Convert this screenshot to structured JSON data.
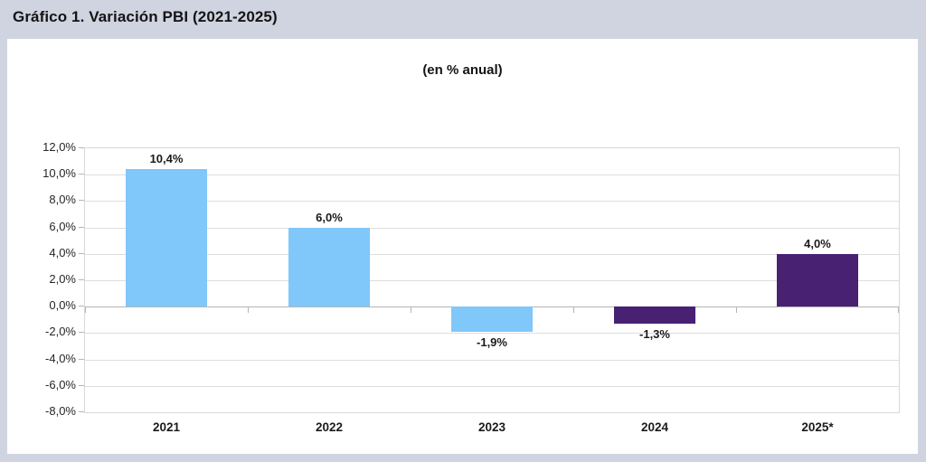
{
  "heading": "Gráfico 1. Variación PBI (2021-2025)",
  "subtitle": "(en % anual)",
  "colors": {
    "page_background": "#d0d4e0",
    "card_background": "#ffffff",
    "bar_blue": "#80c7fa",
    "bar_purple": "#482173",
    "gridline": "#dedede",
    "axis_line": "#b5b5b5",
    "text": "#1a1a1a"
  },
  "chart_data": {
    "type": "bar",
    "title": "Gráfico 1. Variación PBI (2021-2025)",
    "subtitle": "(en % anual)",
    "categories": [
      "2021",
      "2022",
      "2023",
      "2024",
      "2025*"
    ],
    "values": [
      10.4,
      6.0,
      -1.9,
      -1.3,
      4.0
    ],
    "bar_labels": [
      "10,4%",
      "6,0%",
      "-1,9%",
      "-1,3%",
      "4,0%"
    ],
    "bar_colors": [
      "#80c7fa",
      "#80c7fa",
      "#80c7fa",
      "#482173",
      "#482173"
    ],
    "xlabel": "",
    "ylabel": "",
    "ylim": [
      -8,
      12
    ],
    "grid": true,
    "legend": false,
    "yticks": [
      {
        "value": 12,
        "label": "12,0%"
      },
      {
        "value": 10,
        "label": "10,0%"
      },
      {
        "value": 8,
        "label": "8,0%"
      },
      {
        "value": 6,
        "label": "6,0%"
      },
      {
        "value": 4,
        "label": "4,0%"
      },
      {
        "value": 2,
        "label": "2,0%"
      },
      {
        "value": 0,
        "label": "0,0%"
      },
      {
        "value": -2,
        "label": "-2,0%"
      },
      {
        "value": -4,
        "label": "-4,0%"
      },
      {
        "value": -6,
        "label": "-6,0%"
      },
      {
        "value": -8,
        "label": "-8,0%"
      }
    ]
  }
}
